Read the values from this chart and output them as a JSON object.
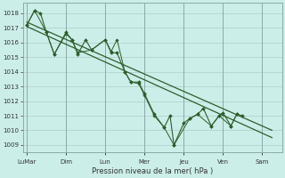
{
  "xlabel": "Pression niveau de la mer( hPa )",
  "background_color": "#cceee8",
  "grid_color": "#b0ccc8",
  "line_color": "#2d5e2d",
  "ylim": [
    1008.5,
    1018.7
  ],
  "yticks": [
    1009,
    1010,
    1011,
    1012,
    1013,
    1014,
    1015,
    1016,
    1017,
    1018
  ],
  "x_labels": [
    "LuMar",
    "Dim",
    "Lun",
    "Mer",
    "Jeu",
    "Ven",
    "Sam"
  ],
  "x_positions": [
    0,
    2,
    4,
    6,
    8,
    10,
    12
  ],
  "xlim": [
    -0.2,
    13.0
  ],
  "trend1_x": [
    0.0,
    12.5
  ],
  "trend1_y": [
    1017.4,
    1010.0
  ],
  "trend2_x": [
    0.0,
    12.5
  ],
  "trend2_y": [
    1017.1,
    1009.5
  ],
  "series_main_x": [
    0.0,
    0.4,
    0.7,
    1.0,
    1.4,
    2.0,
    2.3,
    2.6,
    3.0,
    3.3,
    4.0,
    4.3,
    4.6,
    5.0,
    5.3,
    5.7,
    6.0,
    6.5,
    7.0,
    7.3,
    7.5,
    8.0,
    8.3,
    8.7,
    9.0,
    9.4,
    9.8,
    10.0,
    10.4,
    10.7,
    11.0
  ],
  "series_main_y": [
    1017.2,
    1018.2,
    1018.0,
    1016.7,
    1015.2,
    1016.7,
    1016.2,
    1015.2,
    1016.2,
    1015.5,
    1016.2,
    1015.3,
    1015.3,
    1014.0,
    1013.3,
    1013.3,
    1012.5,
    1011.1,
    1010.2,
    1011.0,
    1009.0,
    1010.5,
    1010.8,
    1011.1,
    1011.5,
    1010.3,
    1011.0,
    1011.2,
    1010.3,
    1011.1,
    1011.0
  ],
  "series_alt_x": [
    0.0,
    0.4,
    1.0,
    1.4,
    2.0,
    2.3,
    2.6,
    3.3,
    4.0,
    4.3,
    4.6,
    5.0,
    5.3,
    5.7,
    6.0,
    6.5,
    7.0,
    7.5,
    8.3,
    8.7,
    9.4,
    9.8,
    10.4,
    10.7
  ],
  "series_alt_y": [
    1017.2,
    1018.2,
    1016.7,
    1015.2,
    1016.6,
    1016.2,
    1015.3,
    1015.5,
    1016.2,
    1015.4,
    1016.2,
    1014.0,
    1013.3,
    1013.2,
    1012.4,
    1011.0,
    1010.2,
    1009.0,
    1010.8,
    1011.1,
    1010.3,
    1011.0,
    1010.3,
    1011.1
  ]
}
